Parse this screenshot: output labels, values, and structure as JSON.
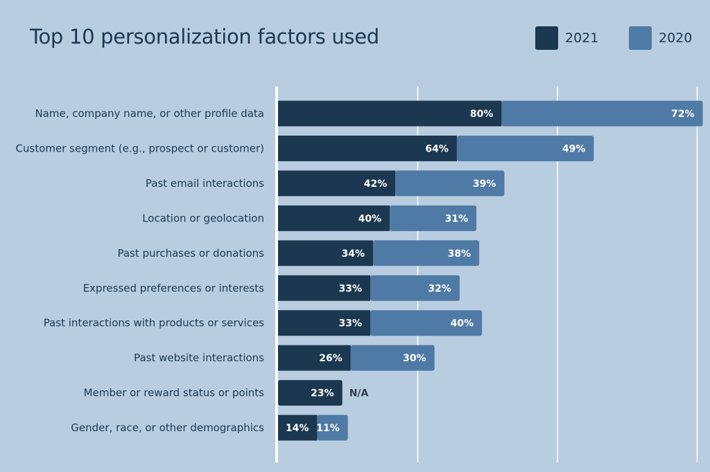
{
  "chart_data": {
    "type": "bar",
    "orientation": "horizontal",
    "stacked": true,
    "title": "Top 10 personalization factors used",
    "categories": [
      "Name, company name, or other profile data",
      "Customer segment (e.g., prospect or customer)",
      "Past email interactions",
      "Location or geolocation",
      "Past purchases or donations",
      "Expressed preferences or interests",
      "Past interactions with products or services",
      "Past website interactions",
      "Member or reward status or points",
      "Gender, race, or other demographics"
    ],
    "series": [
      {
        "name": "2021",
        "color": "#1b3850",
        "values": [
          80,
          64,
          42,
          40,
          34,
          33,
          33,
          26,
          23,
          14
        ]
      },
      {
        "name": "2020",
        "color": "#4f7aa5",
        "values": [
          72,
          49,
          39,
          31,
          38,
          32,
          40,
          30,
          null,
          11
        ]
      }
    ],
    "missing_label": "N/A",
    "value_suffix": "%",
    "xlim": [
      0,
      152
    ],
    "gridlines": [
      50,
      100,
      150
    ],
    "grid": true,
    "legend": "top-right",
    "background": "#b9cde0",
    "text_color": "#1b3850"
  }
}
